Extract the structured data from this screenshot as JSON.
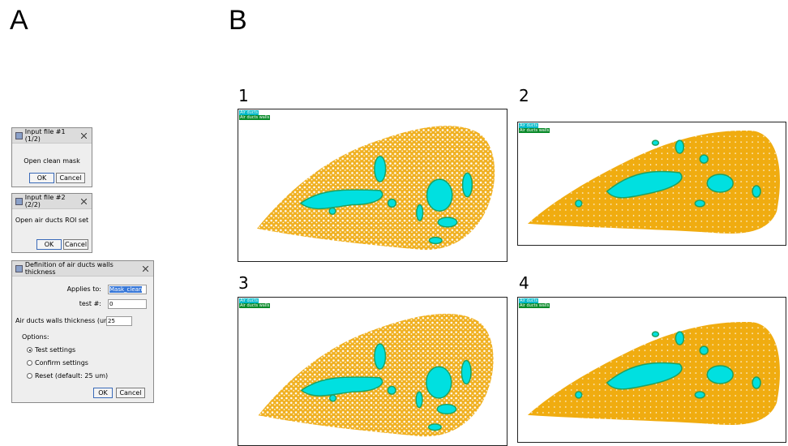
{
  "panel_a": {
    "label": "A",
    "dialogs": [
      {
        "title": "Input file #1 (1/2)",
        "message": "Open clean mask",
        "buttons": [
          "OK",
          "Cancel"
        ]
      },
      {
        "title": "Input file #2 (2/2)",
        "message": "Open air ducts ROI set",
        "buttons": [
          "OK",
          "Cancel"
        ]
      },
      {
        "title": "Definition of air ducts walls thickness",
        "fields": [
          {
            "label": "Applies to:",
            "value": "Mask_clean"
          },
          {
            "label": "test #:",
            "value": "0"
          },
          {
            "label": "Air ducts walls thickness (um):",
            "value": "25"
          }
        ],
        "options_label": "Options:",
        "options": [
          "Test settings",
          "Confirm settings",
          "Reset (default: 25 um)"
        ],
        "buttons": [
          "OK",
          "Cancel"
        ]
      }
    ]
  },
  "panel_b": {
    "label": "B",
    "images": [
      {
        "label": "1",
        "legend": [
          "Air ducts",
          "Air ducts walls"
        ]
      },
      {
        "label": "2",
        "legend": [
          "Air ducts",
          "Air ducts walls"
        ]
      },
      {
        "label": "3",
        "legend": [
          "Air ducts",
          "Air ducts walls"
        ]
      },
      {
        "label": "4",
        "legend": [
          "Air ducts",
          "Air ducts walls"
        ]
      }
    ]
  }
}
